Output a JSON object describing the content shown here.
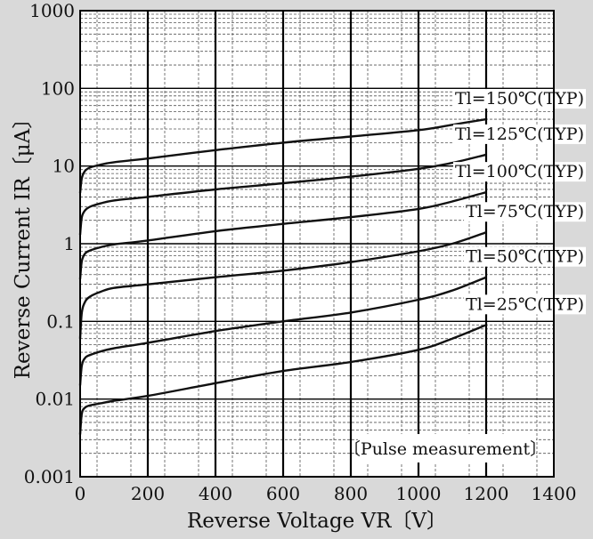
{
  "chart_data": {
    "type": "line",
    "title": "",
    "xlabel": "Reverse Voltage  VR〔V〕",
    "ylabel": "Reverse Current IR〔μA〕",
    "xlim": [
      0,
      1400
    ],
    "ylim": [
      0.001,
      1000
    ],
    "y_scale": "log",
    "grid": true,
    "x_ticks": [
      "0",
      "200",
      "400",
      "600",
      "800",
      "1000",
      "1200",
      "1400"
    ],
    "y_ticks": [
      "0.001",
      "0.01",
      "0.1",
      "1",
      "10",
      "100",
      "1000"
    ],
    "annotation": "〔Pulse measurement〕",
    "series": [
      {
        "name": "Tl=150℃(TYP)",
        "x": [
          0,
          5,
          15,
          30,
          60,
          100,
          200,
          400,
          600,
          800,
          1000,
          1100,
          1200
        ],
        "y": [
          4.5,
          7,
          8.7,
          9.6,
          10.4,
          11.2,
          12.5,
          16,
          20,
          24,
          29,
          34,
          40
        ]
      },
      {
        "name": "Tl=125℃(TYP)",
        "x": [
          0,
          5,
          15,
          30,
          60,
          100,
          200,
          400,
          600,
          800,
          1000,
          1100,
          1200
        ],
        "y": [
          1.3,
          2.2,
          2.7,
          3,
          3.3,
          3.6,
          4,
          5,
          6,
          7.3,
          9.2,
          11,
          14
        ]
      },
      {
        "name": "Tl=100℃(TYP)",
        "x": [
          0,
          5,
          15,
          30,
          60,
          100,
          200,
          400,
          600,
          800,
          1000,
          1100,
          1200
        ],
        "y": [
          0.35,
          0.6,
          0.75,
          0.82,
          0.9,
          0.98,
          1.1,
          1.45,
          1.8,
          2.2,
          2.8,
          3.5,
          4.6
        ]
      },
      {
        "name": "Tl=75℃(TYP)",
        "x": [
          0,
          5,
          15,
          30,
          60,
          100,
          200,
          400,
          600,
          800,
          1000,
          1100,
          1200
        ],
        "y": [
          0.06,
          0.13,
          0.18,
          0.21,
          0.24,
          0.27,
          0.3,
          0.37,
          0.45,
          0.58,
          0.8,
          1,
          1.4
        ]
      },
      {
        "name": "Tl=50℃(TYP)",
        "x": [
          0,
          5,
          15,
          30,
          60,
          100,
          200,
          400,
          600,
          800,
          1000,
          1100,
          1200
        ],
        "y": [
          0.015,
          0.027,
          0.034,
          0.037,
          0.041,
          0.045,
          0.053,
          0.075,
          0.1,
          0.13,
          0.19,
          0.25,
          0.37
        ]
      },
      {
        "name": "Tl=25℃(TYP)",
        "x": [
          0,
          5,
          15,
          30,
          60,
          100,
          200,
          400,
          600,
          800,
          1000,
          1100,
          1200
        ],
        "y": [
          0.0035,
          0.0065,
          0.0078,
          0.0083,
          0.0088,
          0.0095,
          0.011,
          0.016,
          0.023,
          0.03,
          0.043,
          0.06,
          0.09
        ]
      }
    ]
  }
}
